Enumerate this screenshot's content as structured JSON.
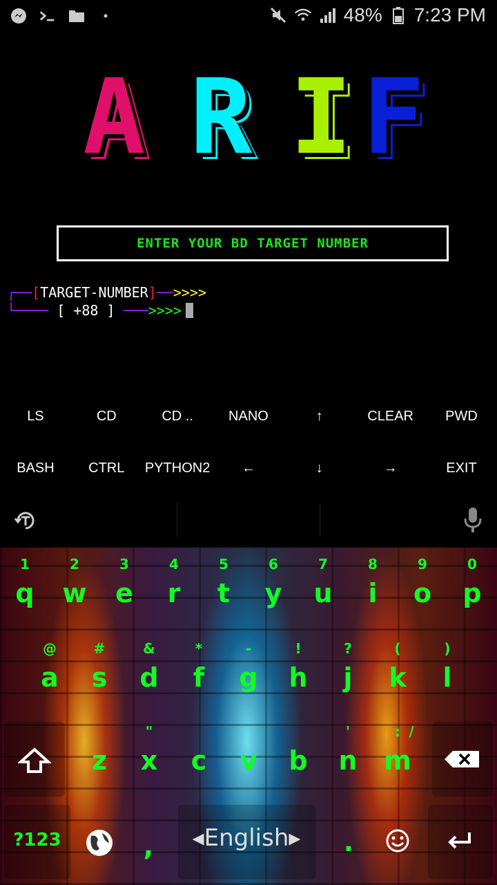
{
  "status_bar": {
    "battery": "48%",
    "time": "7:23 PM",
    "left_icons": [
      "messenger-icon",
      "terminal-icon",
      "folder-icon",
      "dot-icon"
    ],
    "right_icons": [
      "mute-icon",
      "wifi-icon",
      "signal-icon",
      "battery-icon"
    ]
  },
  "banner": {
    "letters": [
      "A",
      "R",
      "I",
      "F"
    ]
  },
  "terminal": {
    "target_box": "ENTER YOUR BD TARGET NUMBER",
    "line1_label": "TARGET-NUMBER",
    "line1_arrows": ">>>>",
    "line2_prefix": "[ +88 ]",
    "line2_arrows": ">>>>"
  },
  "extra_keys": {
    "row1": [
      "LS",
      "CD",
      "CD ..",
      "NANO",
      "↑",
      "CLEAR",
      "PWD"
    ],
    "row2": [
      "BASH",
      "CTRL",
      "PYTHON2",
      "←",
      "↓",
      "→",
      "EXIT"
    ]
  },
  "keyboard": {
    "row_numbers": [
      "1",
      "2",
      "3",
      "4",
      "5",
      "6",
      "7",
      "8",
      "9",
      "0"
    ],
    "row_qwerty": [
      "q",
      "w",
      "e",
      "r",
      "t",
      "y",
      "u",
      "i",
      "o",
      "p"
    ],
    "row_symbols": [
      "@",
      "#",
      "&",
      "*",
      "-",
      "!",
      "?",
      "(",
      ")"
    ],
    "row_asdf": [
      "a",
      "s",
      "d",
      "f",
      "g",
      "h",
      "j",
      "k",
      "l"
    ],
    "row_zx_hints": [
      "\"",
      "'",
      ":",
      "/"
    ],
    "row_zxcv": [
      "z",
      "x",
      "c",
      "v",
      "b",
      "n",
      "m"
    ],
    "symbols_key": "?123",
    "comma": ",",
    "period": ".",
    "language": "English",
    "accent_color": "#11ff22"
  }
}
